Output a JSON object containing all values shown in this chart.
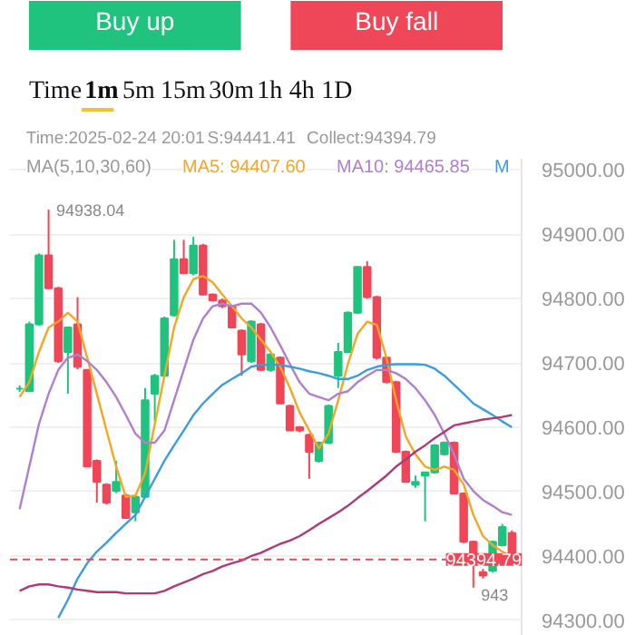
{
  "chart_data": {
    "type": "candlestick",
    "categories": [
      null,
      null,
      null,
      null,
      null,
      null,
      null,
      null,
      null,
      null,
      null,
      null,
      null,
      null,
      null,
      null,
      null,
      null,
      null,
      null,
      null,
      null,
      null,
      null,
      null,
      null,
      null,
      null,
      null,
      null,
      null,
      null,
      null,
      null,
      null,
      null,
      null,
      null,
      null,
      null,
      null,
      null,
      null,
      null,
      null,
      null,
      null,
      null,
      null,
      null,
      null,
      null
    ],
    "ohlc": [
      [
        94660,
        94665,
        94655,
        94660
      ],
      [
        94656,
        94764,
        94655,
        94760
      ],
      [
        94760,
        94870,
        94758,
        94867
      ],
      [
        94867,
        94938.04,
        94815,
        94816
      ],
      [
        94816,
        94818,
        94700,
        94703
      ],
      [
        94717,
        94755,
        94652,
        94755
      ],
      [
        94760,
        94802,
        94690,
        94694
      ],
      [
        94689,
        94690,
        94538,
        94539
      ],
      [
        94548,
        94550,
        94483,
        94515
      ],
      [
        94511,
        94513,
        94480,
        94483
      ],
      [
        94501,
        94548,
        94498,
        94515
      ],
      [
        94494,
        94497,
        94458,
        94459
      ],
      [
        94468,
        94494,
        94454,
        94492
      ],
      [
        94492,
        94661,
        94490,
        94642
      ],
      [
        94652,
        94683,
        94609,
        94680
      ],
      [
        94680,
        94772,
        94678,
        94769
      ],
      [
        94774,
        94891,
        94772,
        94861
      ],
      [
        94861,
        94891,
        94838,
        94839
      ],
      [
        94839,
        94896,
        94836,
        94882
      ],
      [
        94882,
        94885,
        94805,
        94806
      ],
      [
        94806,
        94808,
        94795,
        94797
      ],
      [
        94797,
        94800,
        94785,
        94788
      ],
      [
        94788,
        94790,
        94754,
        94755
      ],
      [
        94750,
        94752,
        94680,
        94713
      ],
      [
        94703,
        94766,
        94700,
        94764
      ],
      [
        94760,
        94762,
        94688,
        94689
      ],
      [
        94689,
        94715,
        94686,
        94713
      ],
      [
        94708,
        94710,
        94636,
        94637
      ],
      [
        94633,
        94635,
        94594,
        94595
      ],
      [
        94600,
        94602,
        94592,
        94595
      ],
      [
        94588,
        94590,
        94520,
        94562
      ],
      [
        94548,
        94578,
        94545,
        94576
      ],
      [
        94576,
        94635,
        94574,
        94633
      ],
      [
        94680,
        94731,
        94661,
        94717
      ],
      [
        94717,
        94780,
        94715,
        94778
      ],
      [
        94778,
        94850,
        94776,
        94849
      ],
      [
        94849,
        94858,
        94800,
        94802
      ],
      [
        94802,
        94804,
        94705,
        94708
      ],
      [
        94708,
        94710,
        94668,
        94670
      ],
      [
        94670,
        94672,
        94560,
        94562
      ],
      [
        94562,
        94564,
        94515,
        94515
      ],
      [
        94511,
        94525,
        94506,
        94515
      ],
      [
        94525,
        94530,
        94454,
        94530
      ],
      [
        94530,
        94574,
        94528,
        94572
      ],
      [
        94558,
        94578,
        94556,
        94576
      ],
      [
        94576,
        94578,
        94496,
        94497
      ],
      [
        94497,
        94499,
        94420,
        94422
      ],
      [
        94422,
        94424,
        94351,
        94389
      ],
      [
        94375,
        94380,
        94365,
        94370
      ],
      [
        94377,
        94424,
        94375,
        94422
      ],
      [
        94417,
        94450,
        94415,
        94445
      ],
      [
        94436,
        94440,
        94393,
        94394.79
      ]
    ],
    "series": [
      {
        "type": "line",
        "color": "#f5a623",
        "values": [
          94647,
          94670,
          94717,
          94755,
          94764,
          94778,
          94764,
          94708,
          94652,
          94595,
          94539,
          94492,
          94494,
          94529,
          94605,
          94680,
          94755,
          94802,
          94830,
          94835,
          94825,
          94806,
          94788,
          94769,
          94755,
          94736,
          94717,
          94694,
          94661,
          94623,
          94595,
          94567,
          94590,
          94642,
          94698,
          94745,
          94764,
          94759,
          94708,
          94642,
          94586,
          94558,
          94539,
          94534,
          94539,
          94534,
          94511,
          94464,
          94431,
          94417,
          94407,
          94398
        ]
      },
      {
        "type": "line",
        "color": "#b07fd0",
        "values": [
          94473,
          94539,
          94605,
          94652,
          94689,
          94708,
          94713,
          94703,
          94689,
          94670,
          94647,
          94619,
          94590,
          94576,
          94576,
          94595,
          94642,
          94689,
          94736,
          94769,
          94788,
          94792,
          94788,
          94792,
          94792,
          94778,
          94755,
          94727,
          94698,
          94670,
          94652,
          94647,
          94642,
          94652,
          94656,
          94670,
          94680,
          94689,
          94689,
          94684,
          94675,
          94661,
          94642,
          94619,
          94590,
          94558,
          94520,
          94501,
          94487,
          94478,
          94468,
          94464
        ]
      },
      {
        "type": "line",
        "color": "#3b9de0",
        "values": [
          null,
          null,
          null,
          null,
          94304,
          94332,
          94365,
          94389,
          94407,
          94421,
          94436,
          94450,
          94464,
          94492,
          94520,
          94548,
          94572,
          94595,
          94619,
          94637,
          94652,
          94666,
          94675,
          94684,
          94694,
          94697,
          94697,
          94697,
          94694,
          94691,
          94687,
          94684,
          94680,
          94675,
          94675,
          94680,
          94689,
          94694,
          94697,
          94698,
          94698,
          94698,
          94697,
          94691,
          94680,
          94666,
          94652,
          94637,
          94628,
          94619,
          94609,
          94600
        ]
      },
      {
        "type": "line",
        "color": "#b03a78",
        "values": [
          94346,
          94353,
          94356,
          94356,
          94353,
          94351,
          94348,
          94346,
          94344,
          94344,
          94344,
          94342,
          94342,
          94342,
          94342,
          94346,
          94353,
          94359,
          94365,
          94372,
          94377,
          94384,
          94389,
          94393,
          94400,
          94405,
          94412,
          94419,
          94424,
          94431,
          94440,
          94450,
          94459,
          94468,
          94478,
          94490,
          94501,
          94513,
          94525,
          94539,
          94550,
          94562,
          94572,
          94583,
          94593,
          94603,
          94606,
          94609,
          94612,
          94614,
          94616,
          94619
        ]
      }
    ],
    "ylim": [
      94276,
      95017
    ],
    "yticks": [
      {
        "value": 94300,
        "label": "94300.00"
      },
      {
        "value": 94400,
        "label": "94400.00"
      },
      {
        "value": 94500,
        "label": "94500.00"
      },
      {
        "value": 94600,
        "label": "94600.00"
      },
      {
        "value": 94700,
        "label": "94700.00"
      },
      {
        "value": 94800,
        "label": "94800.00"
      },
      {
        "value": 94900,
        "label": "94900.00"
      },
      {
        "value": 95000,
        "label": "95000.00"
      }
    ],
    "grid": "y",
    "ref_lines": [
      {
        "axis": "y",
        "value": 94394.79,
        "label": "94394.79",
        "color": "#ef4658",
        "line_style": "dashed"
      }
    ],
    "annotations": [
      "Buy up",
      "Buy fall",
      "Time",
      "1m",
      "5m",
      "15m",
      "30m",
      "1h",
      "4h",
      "1D",
      "Time:2025-02-24 20:01",
      "S:94441.41",
      "Collect:94394.79",
      "MA(5,10,30,60)",
      "MA5: 94407.60",
      "MA10: 94465.85",
      "M",
      "94938.04",
      "943"
    ]
  }
}
